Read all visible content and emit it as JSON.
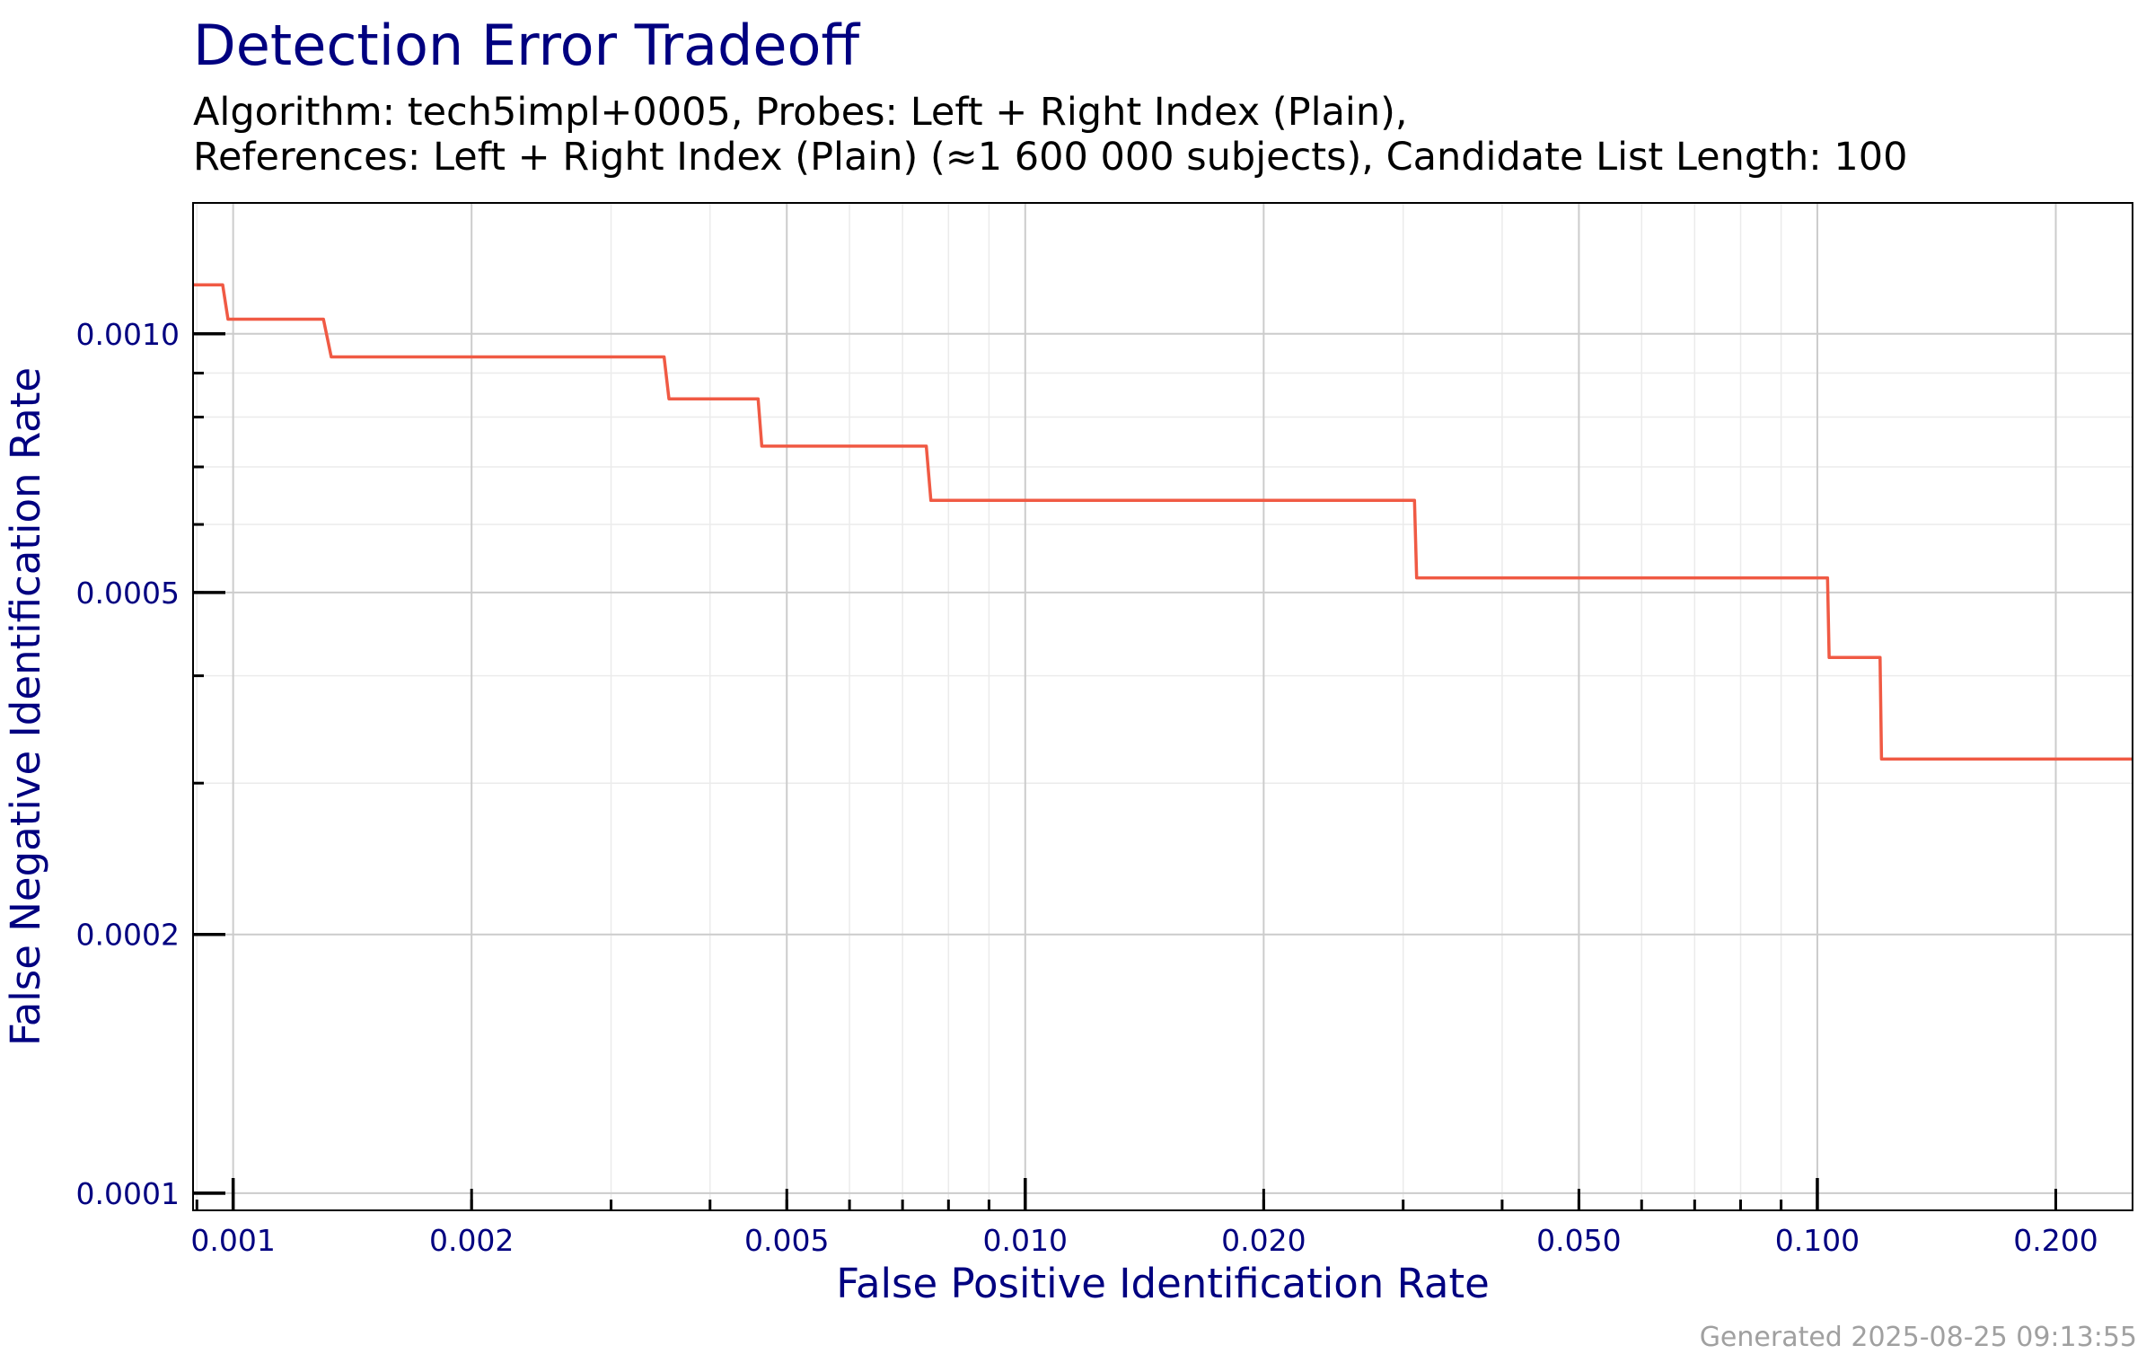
{
  "chart_data": {
    "type": "line",
    "title": "Detection Error Tradeoff",
    "subtitle_line1": "Algorithm: tech5impl+0005, Probes: Left + Right Index (Plain),",
    "subtitle_line2": "References: Left + Right Index (Plain) (≈1 600 000 subjects), Candidate List Length: 100",
    "xlabel": "False Positive Identification Rate",
    "ylabel": "False Negative Identification Rate",
    "xscale": "log",
    "yscale": "log",
    "xlim": [
      0.00089,
      0.25
    ],
    "ylim": [
      9.55e-05,
      0.00142
    ],
    "xticks": [
      {
        "value": 0.001,
        "label": "0.001"
      },
      {
        "value": 0.002,
        "label": "0.002"
      },
      {
        "value": 0.005,
        "label": "0.005"
      },
      {
        "value": 0.01,
        "label": "0.010"
      },
      {
        "value": 0.02,
        "label": "0.020"
      },
      {
        "value": 0.05,
        "label": "0.050"
      },
      {
        "value": 0.1,
        "label": "0.100"
      },
      {
        "value": 0.2,
        "label": "0.200"
      }
    ],
    "yticks": [
      {
        "value": 0.0001,
        "label": "0.0001"
      },
      {
        "value": 0.0002,
        "label": "0.0002"
      },
      {
        "value": 0.0005,
        "label": "0.0005"
      },
      {
        "value": 0.001,
        "label": "0.0010"
      }
    ],
    "grid": true,
    "series": [
      {
        "name": "tech5impl+0005",
        "color": "#f05a44",
        "x": [
          0.00089,
          0.00097,
          0.000985,
          0.0013,
          0.00133,
          0.0035,
          0.00355,
          0.0046,
          0.00465,
          0.0075,
          0.0076,
          0.031,
          0.0312,
          0.103,
          0.1035,
          0.12,
          0.1205,
          0.25
        ],
        "y": [
          0.00114,
          0.00114,
          0.00104,
          0.00104,
          0.00094,
          0.00094,
          0.00084,
          0.00084,
          0.00074,
          0.00074,
          0.00064,
          0.00064,
          0.00052,
          0.00052,
          0.00042,
          0.00042,
          0.00032,
          0.00032
        ]
      }
    ]
  },
  "footer": "Generated 2025-08-25 09:13:55"
}
